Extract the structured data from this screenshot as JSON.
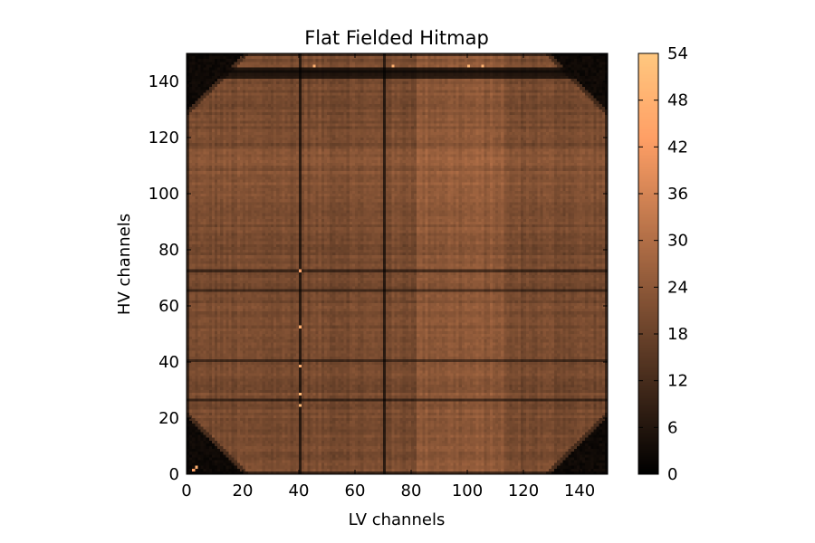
{
  "chart_data": {
    "type": "heatmap",
    "title": "Flat Fielded Hitmap",
    "xlabel": "LV channels",
    "ylabel": "HV channels",
    "xlim": [
      0,
      150
    ],
    "ylim": [
      0,
      150
    ],
    "x_ticks": [
      0,
      20,
      40,
      60,
      80,
      100,
      120,
      140
    ],
    "y_ticks": [
      0,
      20,
      40,
      60,
      80,
      100,
      120,
      140
    ],
    "colorbar": {
      "range": [
        0,
        54
      ],
      "ticks": [
        0,
        6,
        12,
        18,
        24,
        30,
        36,
        42,
        48,
        54
      ],
      "colormap": "copper"
    },
    "grid_size": [
      150,
      150
    ],
    "typical_value": 20,
    "features": {
      "dark_columns": [
        40,
        70
      ],
      "dark_rows": [
        40,
        26,
        65,
        72,
        143
      ],
      "bright_column_band": [
        82,
        112
      ],
      "bright_row_band": [
        95,
        115
      ],
      "cut_corners": "all four corners clipped diagonally",
      "hot_pixels": [
        [
          45,
          145
        ],
        [
          40,
          72
        ],
        [
          40,
          52
        ],
        [
          40,
          38
        ],
        [
          40,
          28
        ],
        [
          40,
          24
        ],
        [
          73,
          145
        ],
        [
          100,
          145
        ],
        [
          105,
          145
        ],
        [
          2,
          1
        ],
        [
          3,
          2
        ]
      ]
    }
  },
  "colors": {
    "colormap_low": "#000000",
    "colormap_high": "#ffc77f"
  }
}
